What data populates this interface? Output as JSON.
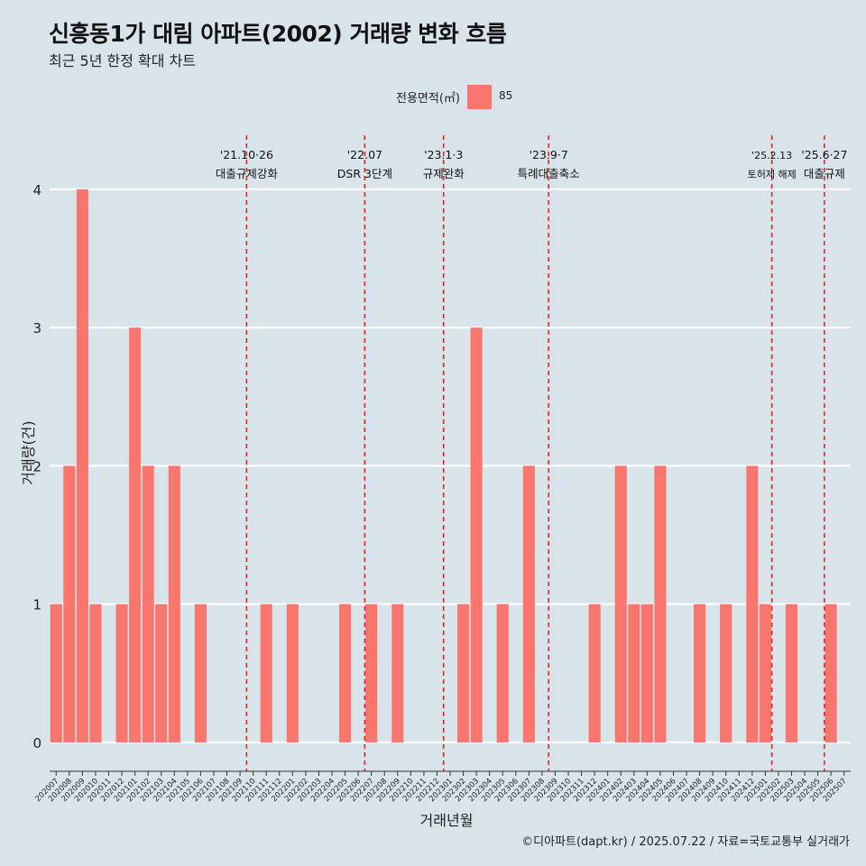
{
  "title": "신흥동1가 대림 아파트(2002) 거래량 변화 흐름",
  "subtitle": "최근 5년 한정 확대 차트",
  "legend": {
    "title": "전용면적(㎡)",
    "label": "85",
    "color": "#f8766d"
  },
  "caption": "©디아파트(dapt.kr) / 2025.07.22 / 자료=국토교통부 실거래가",
  "chart_data": {
    "type": "bar",
    "xlabel": "거래년월",
    "ylabel": "거래량(건)",
    "ylim": [
      0,
      4
    ],
    "yticks": [
      0,
      1,
      2,
      3,
      4
    ],
    "grid": true,
    "legend_position": "top",
    "bar_color": "#f8766d",
    "categories": [
      "202007",
      "202008",
      "202009",
      "202010",
      "202011",
      "202012",
      "202101",
      "202102",
      "202103",
      "202104",
      "202105",
      "202106",
      "202107",
      "202108",
      "202109",
      "202110",
      "202111",
      "202112",
      "202201",
      "202202",
      "202203",
      "202204",
      "202205",
      "202206",
      "202207",
      "202208",
      "202209",
      "202210",
      "202211",
      "202212",
      "202301",
      "202302",
      "202303",
      "202304",
      "202305",
      "202306",
      "202307",
      "202308",
      "202309",
      "202310",
      "202311",
      "202312",
      "202401",
      "202402",
      "202403",
      "202404",
      "202405",
      "202406",
      "202407",
      "202408",
      "202409",
      "202410",
      "202411",
      "202412",
      "202501",
      "202502",
      "202503",
      "202504",
      "202505",
      "202506",
      "202507"
    ],
    "series": [
      {
        "name": "85",
        "values": [
          1,
          2,
          4,
          1,
          0,
          1,
          3,
          2,
          1,
          2,
          0,
          1,
          0,
          0,
          0,
          0,
          1,
          0,
          1,
          0,
          0,
          0,
          1,
          0,
          1,
          0,
          1,
          0,
          0,
          0,
          0,
          1,
          3,
          0,
          1,
          0,
          2,
          0,
          0,
          0,
          0,
          1,
          0,
          2,
          1,
          1,
          2,
          0,
          0,
          1,
          0,
          1,
          0,
          2,
          1,
          0,
          1,
          0,
          0,
          1,
          0
        ]
      }
    ],
    "annotations": [
      {
        "category": "202110",
        "date": "'21.10·26",
        "text": "대출규제강화"
      },
      {
        "category": "202207",
        "date": "'22.07",
        "text": "DSR 3단계"
      },
      {
        "category": "202301",
        "date": "'23.1·3",
        "text": "규제완화"
      },
      {
        "category": "202309",
        "date": "'23.9·7",
        "text": "특례대출축소"
      },
      {
        "category": "202502",
        "date": "'25.2.13",
        "text": "토허제 해제"
      },
      {
        "category": "202506",
        "date": "'25.6·27",
        "text": "대출규제"
      }
    ],
    "annotation_color": "#e41a1c"
  }
}
